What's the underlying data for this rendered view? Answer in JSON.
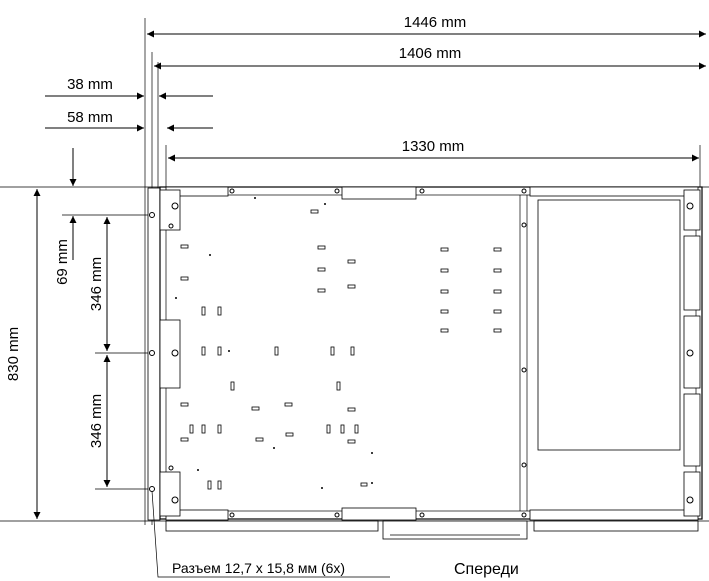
{
  "dimensions": {
    "overall_width": "1446 mm",
    "board_width": "1406 mm",
    "offset_38": "38 mm",
    "offset_58": "58 mm",
    "inner_width": "1330 mm",
    "top_offset": "69 mm",
    "pitch_upper": "346 mm",
    "pitch_lower": "346 mm",
    "overall_height": "830 mm"
  },
  "labels": {
    "connector_callout": "Разъем 12,7 x 15,8 мм (6x)",
    "front": "Спереди"
  }
}
